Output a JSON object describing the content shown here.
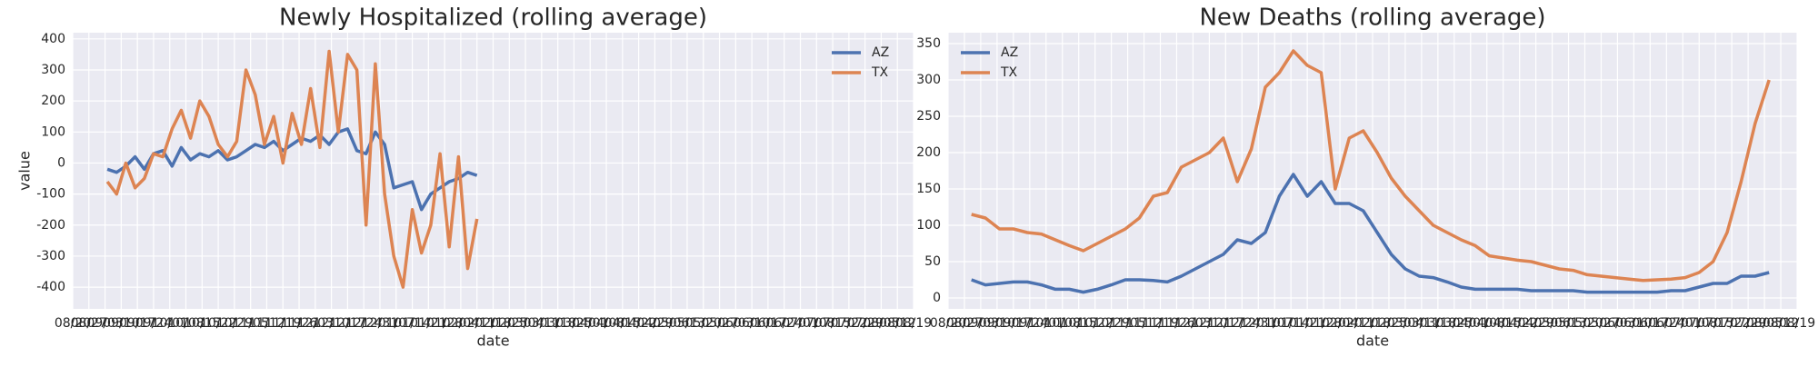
{
  "chart_data": [
    {
      "type": "line",
      "title": "Newly Hospitalized (rolling average)",
      "xlabel": "date",
      "ylabel": "value",
      "grid": true,
      "legend": "upper right",
      "xlim": [
        "08/20",
        "08/19"
      ],
      "xticks": [
        "08/20",
        "08/27",
        "09/03",
        "09/10",
        "09/17",
        "09/24",
        "10/01",
        "10/08",
        "10/15",
        "10/22",
        "10/29",
        "11/05",
        "11/12",
        "11/19",
        "11/26",
        "12/03",
        "12/10",
        "12/17",
        "12/24",
        "12/31",
        "01/07",
        "01/14",
        "01/21",
        "01/28",
        "02/04",
        "02/11",
        "02/18",
        "02/25",
        "03/04",
        "03/11",
        "03/18",
        "03/25",
        "04/01",
        "04/08",
        "04/15",
        "04/22",
        "04/29",
        "05/06",
        "05/13",
        "05/20",
        "05/27",
        "06/03",
        "06/10",
        "06/17",
        "06/24",
        "07/01",
        "07/08",
        "07/15",
        "07/22",
        "07/29",
        "08/05",
        "08/12",
        "08/19"
      ],
      "ylim": [
        -470,
        420
      ],
      "yticks": [
        -400,
        -300,
        -200,
        -100,
        0,
        100,
        200,
        300,
        400
      ],
      "x": [
        "09/04",
        "09/08",
        "09/12",
        "09/16",
        "09/20",
        "09/24",
        "09/28",
        "10/02",
        "10/06",
        "10/10",
        "10/14",
        "10/18",
        "10/22",
        "10/26",
        "10/30",
        "11/03",
        "11/07",
        "11/11",
        "11/15",
        "11/19",
        "11/23",
        "11/27",
        "12/01",
        "12/05",
        "12/09",
        "12/13",
        "12/17",
        "12/21",
        "12/25",
        "12/29",
        "01/02",
        "01/06",
        "01/10",
        "01/14",
        "01/18",
        "01/22",
        "01/26",
        "01/30",
        "02/03",
        "02/07",
        "02/11"
      ],
      "series": [
        {
          "name": "AZ",
          "color": "#4c72b0",
          "values": [
            -20,
            -30,
            -10,
            20,
            -20,
            30,
            40,
            -10,
            50,
            10,
            30,
            20,
            40,
            10,
            20,
            40,
            60,
            50,
            70,
            40,
            60,
            80,
            70,
            90,
            60,
            100,
            110,
            40,
            30,
            100,
            60,
            -80,
            -70,
            -60,
            -150,
            -100,
            -80,
            -60,
            -50,
            -30,
            -40
          ]
        },
        {
          "name": "TX",
          "color": "#dd8452",
          "values": [
            -60,
            -100,
            0,
            -80,
            -50,
            30,
            20,
            110,
            170,
            80,
            200,
            150,
            60,
            20,
            70,
            300,
            220,
            60,
            150,
            0,
            160,
            60,
            240,
            50,
            360,
            100,
            350,
            300,
            -200,
            320,
            -100,
            -300,
            -400,
            -150,
            -290,
            -200,
            30,
            -270,
            20,
            -340,
            -180
          ]
        }
      ]
    },
    {
      "type": "line",
      "title": "New Deaths (rolling average)",
      "xlabel": "date",
      "grid": true,
      "legend": "upper left",
      "xlim": [
        "08/20",
        "08/19"
      ],
      "xticks": [
        "08/20",
        "08/27",
        "09/03",
        "09/10",
        "09/17",
        "09/24",
        "10/01",
        "10/08",
        "10/15",
        "10/22",
        "10/29",
        "11/05",
        "11/12",
        "11/19",
        "11/26",
        "12/03",
        "12/10",
        "12/17",
        "12/24",
        "12/31",
        "01/07",
        "01/14",
        "01/21",
        "01/28",
        "02/04",
        "02/11",
        "02/18",
        "02/25",
        "03/04",
        "03/11",
        "03/18",
        "03/25",
        "04/01",
        "04/08",
        "04/15",
        "04/22",
        "04/29",
        "05/06",
        "05/13",
        "05/20",
        "05/27",
        "06/03",
        "06/10",
        "06/17",
        "06/24",
        "07/01",
        "07/08",
        "07/15",
        "07/22",
        "07/29",
        "08/05",
        "08/12",
        "08/19"
      ],
      "ylim": [
        -15,
        365
      ],
      "yticks": [
        0,
        50,
        100,
        150,
        200,
        250,
        300,
        350
      ],
      "x": [
        "08/30",
        "09/05",
        "09/11",
        "09/17",
        "09/23",
        "09/29",
        "10/05",
        "10/11",
        "10/17",
        "10/23",
        "10/29",
        "11/04",
        "11/10",
        "11/16",
        "11/22",
        "11/28",
        "12/04",
        "12/10",
        "12/16",
        "12/22",
        "12/28",
        "01/03",
        "01/09",
        "01/15",
        "01/21",
        "01/27",
        "02/02",
        "02/08",
        "02/14",
        "02/20",
        "02/26",
        "03/04",
        "03/10",
        "03/16",
        "03/22",
        "03/28",
        "04/03",
        "04/09",
        "04/15",
        "04/21",
        "04/27",
        "05/03",
        "05/09",
        "05/15",
        "05/21",
        "05/27",
        "06/02",
        "06/08",
        "06/14",
        "06/20",
        "06/26",
        "07/02",
        "07/08",
        "07/14",
        "07/20",
        "07/26",
        "08/01",
        "08/07"
      ],
      "series": [
        {
          "name": "AZ",
          "color": "#4c72b0",
          "values": [
            25,
            18,
            20,
            22,
            22,
            18,
            12,
            12,
            8,
            12,
            18,
            25,
            25,
            24,
            22,
            30,
            40,
            50,
            60,
            80,
            75,
            90,
            140,
            170,
            140,
            160,
            130,
            130,
            120,
            90,
            60,
            40,
            30,
            28,
            22,
            15,
            12,
            12,
            12,
            12,
            10,
            10,
            10,
            10,
            8,
            8,
            8,
            8,
            8,
            8,
            10,
            10,
            15,
            20,
            20,
            30,
            30,
            35
          ]
        },
        {
          "name": "TX",
          "color": "#dd8452",
          "values": [
            115,
            110,
            95,
            95,
            90,
            88,
            80,
            72,
            65,
            75,
            85,
            95,
            110,
            140,
            145,
            180,
            190,
            200,
            220,
            160,
            205,
            290,
            310,
            340,
            320,
            310,
            150,
            220,
            230,
            200,
            165,
            140,
            120,
            100,
            90,
            80,
            72,
            58,
            55,
            52,
            50,
            45,
            40,
            38,
            32,
            30,
            28,
            26,
            24,
            25,
            26,
            28,
            35,
            50,
            90,
            160,
            240,
            300
          ]
        }
      ]
    }
  ]
}
